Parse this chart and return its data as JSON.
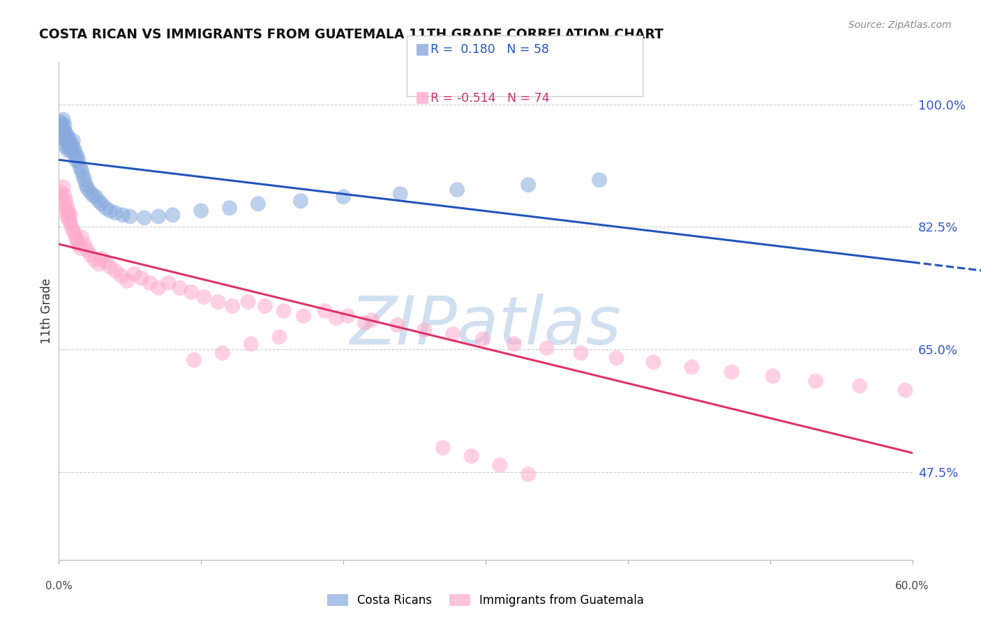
{
  "title": "COSTA RICAN VS IMMIGRANTS FROM GUATEMALA 11TH GRADE CORRELATION CHART",
  "source_text": "Source: ZipAtlas.com",
  "ylabel": "11th Grade",
  "ytick_labels": [
    "100.0%",
    "82.5%",
    "65.0%",
    "47.5%"
  ],
  "ytick_values": [
    1.0,
    0.825,
    0.65,
    0.475
  ],
  "legend_blue_r": "0.180",
  "legend_blue_n": "58",
  "legend_pink_r": "-0.514",
  "legend_pink_n": "74",
  "blue_color": "#88aadd",
  "pink_color": "#ffaacc",
  "blue_line_color": "#2255bb",
  "pink_line_color": "#dd3366",
  "background_color": "#ffffff",
  "watermark_color": "#ccddf0",
  "xmin": 0.0,
  "xmax": 0.6,
  "ymin": 0.35,
  "ymax": 1.06,
  "blue_scatter_x": [
    0.001,
    0.001,
    0.002,
    0.002,
    0.002,
    0.003,
    0.003,
    0.003,
    0.004,
    0.004,
    0.004,
    0.005,
    0.005,
    0.005,
    0.006,
    0.006,
    0.006,
    0.007,
    0.007,
    0.008,
    0.008,
    0.009,
    0.009,
    0.01,
    0.01,
    0.011,
    0.012,
    0.012,
    0.013,
    0.014,
    0.015,
    0.016,
    0.017,
    0.018,
    0.019,
    0.02,
    0.022,
    0.024,
    0.026,
    0.028,
    0.03,
    0.033,
    0.036,
    0.04,
    0.045,
    0.05,
    0.06,
    0.07,
    0.08,
    0.1,
    0.12,
    0.14,
    0.17,
    0.2,
    0.24,
    0.28,
    0.33,
    0.38
  ],
  "blue_scatter_y": [
    0.96,
    0.975,
    0.968,
    0.958,
    0.972,
    0.965,
    0.955,
    0.978,
    0.962,
    0.952,
    0.97,
    0.958,
    0.948,
    0.94,
    0.955,
    0.945,
    0.935,
    0.95,
    0.94,
    0.945,
    0.935,
    0.942,
    0.932,
    0.948,
    0.938,
    0.935,
    0.928,
    0.92,
    0.925,
    0.918,
    0.91,
    0.905,
    0.898,
    0.892,
    0.885,
    0.88,
    0.875,
    0.87,
    0.868,
    0.862,
    0.858,
    0.852,
    0.848,
    0.845,
    0.842,
    0.84,
    0.838,
    0.84,
    0.842,
    0.848,
    0.852,
    0.858,
    0.862,
    0.868,
    0.872,
    0.878,
    0.885,
    0.892
  ],
  "pink_scatter_x": [
    0.001,
    0.002,
    0.003,
    0.004,
    0.004,
    0.005,
    0.005,
    0.006,
    0.006,
    0.007,
    0.007,
    0.008,
    0.008,
    0.009,
    0.01,
    0.011,
    0.012,
    0.013,
    0.014,
    0.015,
    0.016,
    0.018,
    0.02,
    0.022,
    0.025,
    0.028,
    0.03,
    0.033,
    0.036,
    0.04,
    0.044,
    0.048,
    0.053,
    0.058,
    0.064,
    0.07,
    0.077,
    0.085,
    0.093,
    0.102,
    0.112,
    0.122,
    0.133,
    0.145,
    0.158,
    0.172,
    0.187,
    0.203,
    0.22,
    0.238,
    0.257,
    0.277,
    0.298,
    0.32,
    0.343,
    0.367,
    0.392,
    0.418,
    0.445,
    0.473,
    0.502,
    0.532,
    0.563,
    0.595,
    0.195,
    0.215,
    0.155,
    0.135,
    0.115,
    0.095,
    0.27,
    0.29,
    0.31,
    0.33
  ],
  "pink_scatter_y": [
    0.875,
    0.868,
    0.882,
    0.858,
    0.87,
    0.848,
    0.862,
    0.84,
    0.852,
    0.845,
    0.835,
    0.842,
    0.832,
    0.825,
    0.82,
    0.815,
    0.81,
    0.805,
    0.8,
    0.795,
    0.81,
    0.8,
    0.792,
    0.785,
    0.778,
    0.772,
    0.78,
    0.775,
    0.768,
    0.762,
    0.755,
    0.748,
    0.758,
    0.752,
    0.745,
    0.738,
    0.745,
    0.738,
    0.732,
    0.725,
    0.718,
    0.712,
    0.718,
    0.712,
    0.705,
    0.698,
    0.705,
    0.698,
    0.692,
    0.685,
    0.678,
    0.672,
    0.665,
    0.658,
    0.652,
    0.645,
    0.638,
    0.632,
    0.625,
    0.618,
    0.612,
    0.605,
    0.598,
    0.592,
    0.695,
    0.688,
    0.668,
    0.658,
    0.645,
    0.635,
    0.51,
    0.498,
    0.485,
    0.472
  ]
}
